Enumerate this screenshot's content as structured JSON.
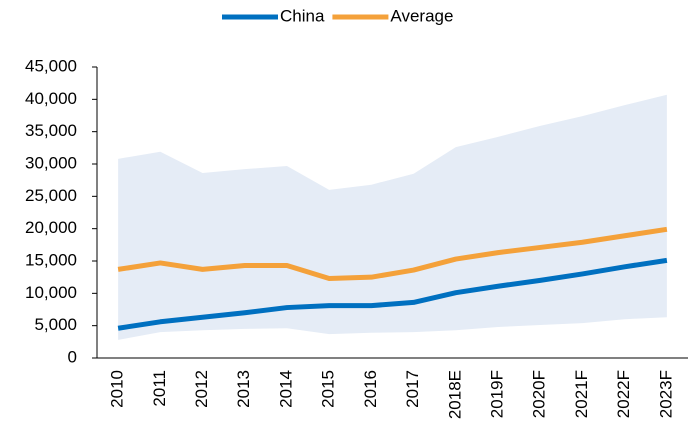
{
  "chart_data": {
    "type": "line",
    "categories": [
      "2010",
      "2011",
      "2012",
      "2013",
      "2014",
      "2015",
      "2016",
      "2017",
      "2018E",
      "2019F",
      "2020F",
      "2021F",
      "2022F",
      "2023F"
    ],
    "series": [
      {
        "name": "China",
        "color": "#0070c0",
        "values": [
          4600,
          5600,
          6300,
          7000,
          7800,
          8100,
          8100,
          8600,
          10100,
          11100,
          12000,
          13000,
          14100,
          15100
        ]
      },
      {
        "name": "Average",
        "color": "#f4a13a",
        "values": [
          13700,
          14700,
          13700,
          14300,
          14300,
          12300,
          12500,
          13600,
          15300,
          16300,
          17100,
          17900,
          18900,
          19900
        ]
      }
    ],
    "range": {
      "color": "#e5ecf6",
      "lower": [
        2800,
        4000,
        4300,
        4500,
        4600,
        3700,
        3900,
        4000,
        4300,
        4800,
        5100,
        5400,
        6000,
        6300
      ],
      "upper": [
        30800,
        31900,
        28600,
        29200,
        29700,
        26000,
        26800,
        28500,
        32600,
        34200,
        35900,
        37400,
        39100,
        40700
      ]
    },
    "ylim": [
      0,
      45000
    ],
    "yticks": [
      0,
      {
        "value": 5000,
        "label": "5,000"
      },
      {
        "value": 10000,
        "label": "10,000"
      },
      {
        "value": 15000,
        "label": "15,000"
      },
      {
        "value": 20000,
        "label": "20,000"
      },
      {
        "value": 25000,
        "label": "25,000"
      },
      {
        "value": 30000,
        "label": "30,000"
      },
      {
        "value": 35000,
        "label": "35,000"
      },
      {
        "value": 40000,
        "label": "40,000"
      },
      {
        "value": 45000,
        "label": "45,000"
      }
    ]
  }
}
